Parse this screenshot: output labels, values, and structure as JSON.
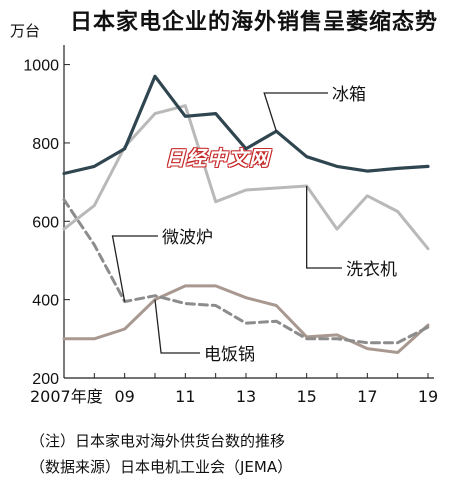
{
  "title": "日本家电企业的海外销售呈萎缩态势",
  "unit": "万台",
  "watermark": "日经中文网",
  "notes": [
    "（注）日本家电对海外供货台数的推移",
    "（数据来源）日本电机工业会（JEMA）"
  ],
  "chart_data": {
    "type": "line",
    "x": [
      2007,
      2008,
      2009,
      2010,
      2011,
      2012,
      2013,
      2014,
      2015,
      2016,
      2017,
      2018,
      2019
    ],
    "x_tick_labels": [
      {
        "x": 2007,
        "label": "2007年度"
      },
      {
        "x": 2009,
        "label": "09"
      },
      {
        "x": 2011,
        "label": "11"
      },
      {
        "x": 2013,
        "label": "13"
      },
      {
        "x": 2015,
        "label": "15"
      },
      {
        "x": 2017,
        "label": "17"
      },
      {
        "x": 2019,
        "label": "19"
      }
    ],
    "y_ticks": [
      200,
      400,
      600,
      800,
      1000
    ],
    "ylim": [
      200,
      1050
    ],
    "grid": false,
    "series": [
      {
        "name": "冰箱",
        "color": "#2f4550",
        "dash": false,
        "values": [
          722,
          740,
          785,
          970,
          868,
          875,
          785,
          830,
          765,
          740,
          728,
          735,
          740
        ]
      },
      {
        "name": "洗衣机",
        "color": "#b9b9b9",
        "dash": false,
        "values": [
          580,
          640,
          790,
          875,
          895,
          650,
          680,
          685,
          690,
          580,
          665,
          625,
          530
        ]
      },
      {
        "name": "微波炉",
        "color": "#8c8c8c",
        "dash": true,
        "values": [
          655,
          540,
          395,
          410,
          390,
          385,
          340,
          345,
          300,
          300,
          290,
          290,
          330
        ]
      },
      {
        "name": "电饭锅",
        "color": "#a89890",
        "dash": false,
        "values": [
          300,
          300,
          325,
          400,
          435,
          435,
          405,
          385,
          305,
          310,
          275,
          265,
          335
        ]
      }
    ]
  }
}
